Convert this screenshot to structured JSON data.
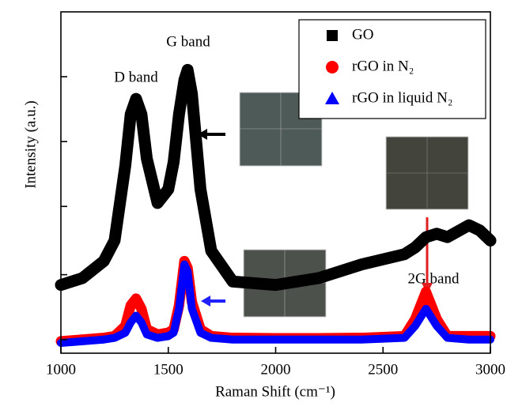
{
  "chart_data": {
    "type": "line",
    "x_label": "Raman Shift (cm⁻¹)",
    "y_label": "Intensity (a.u.)",
    "x": [
      1000,
      1100,
      1200,
      1250,
      1300,
      1325,
      1350,
      1375,
      1400,
      1450,
      1500,
      1525,
      1550,
      1575,
      1590,
      1610,
      1650,
      1700,
      1800,
      2000,
      2200,
      2400,
      2600,
      2650,
      2700,
      2750,
      2800,
      2900,
      2950,
      3000
    ],
    "series": [
      {
        "name": "GO",
        "color": "#000000",
        "marker": "square",
        "values": [
          0.2,
          0.22,
          0.27,
          0.33,
          0.55,
          0.7,
          0.745,
          0.7,
          0.57,
          0.44,
          0.48,
          0.56,
          0.7,
          0.8,
          0.83,
          0.76,
          0.48,
          0.3,
          0.21,
          0.2,
          0.22,
          0.26,
          0.29,
          0.31,
          0.34,
          0.35,
          0.34,
          0.375,
          0.36,
          0.33
        ]
      },
      {
        "name": "rGO in N₂",
        "color": "#ff0000",
        "marker": "circle",
        "values": [
          0.035,
          0.04,
          0.045,
          0.05,
          0.08,
          0.14,
          0.16,
          0.13,
          0.07,
          0.055,
          0.06,
          0.07,
          0.14,
          0.27,
          0.25,
          0.15,
          0.07,
          0.05,
          0.045,
          0.044,
          0.044,
          0.045,
          0.05,
          0.1,
          0.18,
          0.1,
          0.05,
          0.05,
          0.05,
          0.05
        ]
      },
      {
        "name": "rGO in liquid N₂",
        "color": "#0000ff",
        "marker": "triangle",
        "values": [
          0.03,
          0.035,
          0.04,
          0.045,
          0.06,
          0.09,
          0.11,
          0.09,
          0.055,
          0.045,
          0.05,
          0.06,
          0.13,
          0.26,
          0.24,
          0.13,
          0.06,
          0.045,
          0.04,
          0.04,
          0.04,
          0.04,
          0.045,
          0.08,
          0.13,
          0.08,
          0.045,
          0.04,
          0.04,
          0.04
        ]
      }
    ],
    "xlim": [
      1000,
      3000
    ],
    "xticks": [
      1000,
      1500,
      2000,
      2500,
      3000
    ],
    "ylim": [
      0,
      1
    ],
    "yticks": [
      0.04,
      0.23,
      0.43,
      0.62,
      0.81
    ],
    "annotations": [
      "D band",
      "G band",
      "2G band"
    ]
  }
}
